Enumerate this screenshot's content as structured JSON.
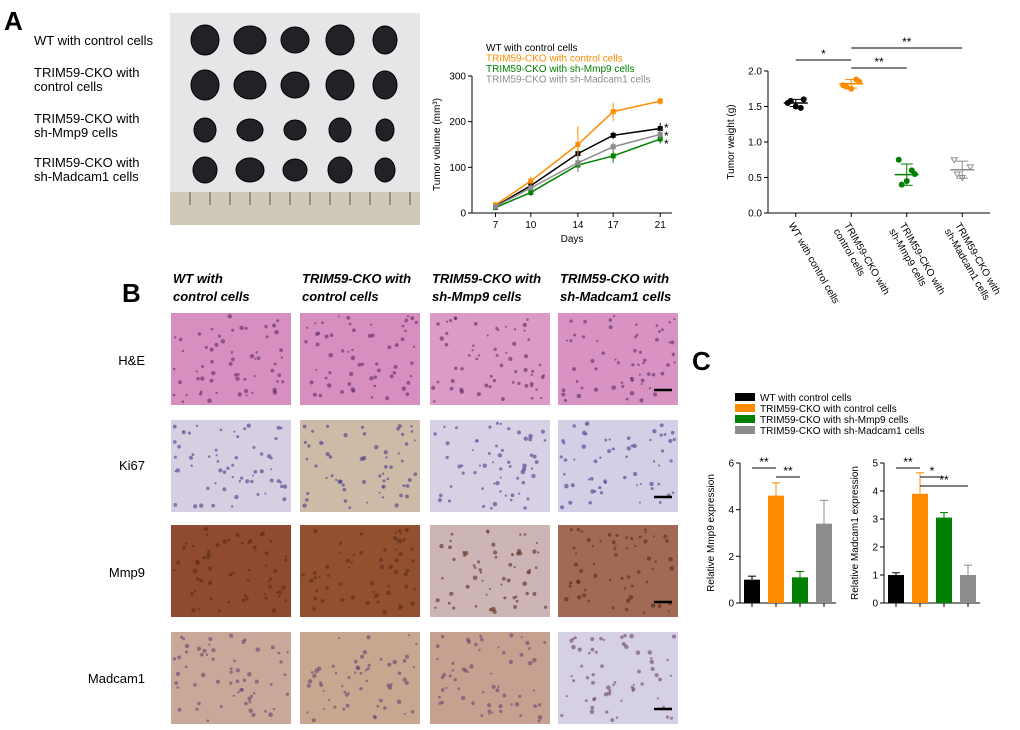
{
  "panels": {
    "a": "A",
    "b": "B",
    "c": "C"
  },
  "photo_labels": [
    [
      "WT with control cells"
    ],
    [
      "TRIM59-CKO with",
      "control cells"
    ],
    [
      "TRIM59-CKO with",
      "sh-Mmp9  cells"
    ],
    [
      "TRIM59-CKO with",
      "sh-Madcam1  cells"
    ]
  ],
  "histology": {
    "columns": [
      [
        "WT with",
        "control cells"
      ],
      [
        "TRIM59-CKO with",
        "control cells"
      ],
      [
        "TRIM59-CKO with",
        "sh-Mmp9  cells"
      ],
      [
        "TRIM59-CKO with",
        "sh-Madcam1  cells"
      ]
    ],
    "rows": [
      "H&E",
      "Ki67",
      "Mmp9",
      "Madcam1"
    ]
  },
  "legend_c": [
    {
      "name": "WT with control cells",
      "color": "#000000"
    },
    {
      "name": "TRIM59-CKO with  control cells",
      "color": "#ff8c00"
    },
    {
      "name": "TRIM59-CKO with sh-Mmp9  cells",
      "color": "#008000"
    },
    {
      "name": "TRIM59-CKO with sh-Madcam1  cells",
      "color": "#8c8c8c"
    }
  ],
  "chart_data": [
    {
      "type": "line",
      "xlabel": "Days",
      "ylabel": "Tumor volume (mm³)",
      "x": [
        7,
        10,
        14,
        17,
        21
      ],
      "xlim": [
        5,
        22
      ],
      "xticks": [
        7,
        10,
        14,
        17,
        21
      ],
      "ylim": [
        0,
        300
      ],
      "yticks": [
        0,
        100,
        200,
        300
      ],
      "series": [
        {
          "name": "WT with control cells",
          "color": "#000000",
          "values": [
            15,
            60,
            130,
            170,
            185
          ],
          "errors": [
            5,
            8,
            10,
            8,
            12
          ]
        },
        {
          "name": "TRIM59-CKO with  control cells",
          "color": "#ff8c00",
          "values": [
            18,
            70,
            150,
            222,
            245
          ],
          "errors": [
            5,
            10,
            40,
            20,
            8
          ]
        },
        {
          "name": "TRIM59-CKO with sh-Mmp9  cells",
          "color": "#008000",
          "values": [
            12,
            45,
            105,
            125,
            162
          ],
          "errors": [
            4,
            8,
            15,
            15,
            10
          ]
        },
        {
          "name": "TRIM59-CKO with sh-Madcam1  cells",
          "color": "#8c8c8c",
          "values": [
            14,
            55,
            110,
            145,
            172
          ],
          "errors": [
            4,
            6,
            20,
            10,
            10
          ]
        }
      ],
      "annotations": [
        "*",
        "*",
        "*"
      ]
    },
    {
      "type": "scatter",
      "ylabel": "Tumor weight (g)",
      "categories": [
        [
          "WT with control cells"
        ],
        [
          "TRIM59-CKO with",
          "control cells"
        ],
        [
          "TRIM59-CKO with",
          "sh-Mmp9  cells"
        ],
        [
          "TRIM59-CKO with",
          "sh-Madcam1  cells"
        ]
      ],
      "colors": [
        "#000000",
        "#ff8c00",
        "#008000",
        "#8c8c8c"
      ],
      "ylim": [
        0,
        2.0
      ],
      "yticks": [
        {
          "value": 0,
          "label": "0.0"
        },
        0.5,
        {
          "value": 1,
          "label": "1.0"
        },
        1.5,
        {
          "value": 2,
          "label": "2.0"
        }
      ],
      "points": [
        [
          1.55,
          1.6,
          1.5,
          1.58,
          1.48
        ],
        [
          1.8,
          1.85,
          1.75,
          1.78,
          1.88
        ],
        [
          0.75,
          0.55,
          0.45,
          0.4,
          0.6
        ],
        [
          0.75,
          0.65,
          0.5,
          0.55
        ]
      ],
      "means": [
        1.55,
        1.82,
        0.54,
        0.61
      ],
      "sd": [
        0.05,
        0.06,
        0.15,
        0.12
      ],
      "significance": [
        {
          "from": 0,
          "to": 1,
          "label": "*"
        },
        {
          "from": 1,
          "to": 2,
          "label": "**"
        },
        {
          "from": 1,
          "to": 3,
          "label": "**"
        }
      ]
    },
    {
      "type": "bar",
      "ylabel": "Relative Mmp9 expression",
      "values": [
        1.0,
        4.6,
        1.1,
        3.4
      ],
      "errors": [
        0.15,
        0.55,
        0.25,
        1.0
      ],
      "ylim": [
        0,
        6
      ],
      "yticks": [
        0,
        2,
        4,
        6
      ],
      "significance": [
        {
          "from": 0,
          "to": 1,
          "label": "**"
        },
        {
          "from": 1,
          "to": 2,
          "label": "**"
        }
      ]
    },
    {
      "type": "bar",
      "ylabel": "Relative Madcam1 expression",
      "values": [
        1.0,
        3.9,
        3.05,
        1.0
      ],
      "errors": [
        0.08,
        0.75,
        0.18,
        0.35
      ],
      "ylim": [
        0,
        5
      ],
      "yticks": [
        0,
        1,
        2,
        3,
        4,
        5
      ],
      "significance": [
        {
          "from": 0,
          "to": 1,
          "label": "**"
        },
        {
          "from": 1,
          "to": 2,
          "label": "*"
        },
        {
          "from": 1,
          "to": 3,
          "label": "**"
        }
      ]
    }
  ]
}
